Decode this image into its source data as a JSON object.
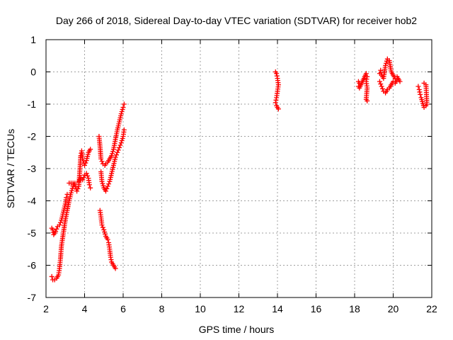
{
  "chart_data": {
    "type": "scatter",
    "title": "Day 266 of 2018, Sidereal Day-to-day VTEC variation (SDTVAR) for receiver hob2",
    "xlabel": "GPS time / hours",
    "ylabel": "SDTVAR / TECUs",
    "xlim": [
      2,
      22
    ],
    "ylim": [
      -7,
      1
    ],
    "xticks": [
      "2",
      "4",
      "6",
      "8",
      "10",
      "12",
      "14",
      "16",
      "18",
      "20",
      "22"
    ],
    "yticks": [
      "1",
      "0",
      "-1",
      "-2",
      "-3",
      "-4",
      "-5",
      "-6",
      "-7"
    ],
    "grid": true,
    "marker": "+",
    "color": "#ff0000",
    "series": [
      {
        "name": "hob2",
        "segments": [
          {
            "x": [
              2.3,
              2.35,
              2.4,
              2.5,
              2.6,
              2.7,
              2.8,
              2.9,
              3.0,
              3.05,
              3.1
            ],
            "y": [
              -4.85,
              -4.9,
              -5.05,
              -4.95,
              -4.8,
              -4.75,
              -4.6,
              -4.35,
              -4.1,
              -3.9,
              -3.8
            ]
          },
          {
            "x": [
              2.3,
              2.35,
              2.45,
              2.55,
              2.65,
              2.7,
              2.75,
              2.8,
              2.9,
              3.0,
              3.1,
              3.2,
              3.3,
              3.4,
              3.5
            ],
            "y": [
              -6.35,
              -6.45,
              -6.45,
              -6.4,
              -6.3,
              -6.1,
              -5.8,
              -5.4,
              -5.0,
              -4.6,
              -4.3,
              -4.0,
              -3.75,
              -3.55,
              -3.45
            ]
          },
          {
            "x": [
              3.2,
              3.3,
              3.4,
              3.5,
              3.6,
              3.7,
              3.75,
              3.8,
              3.85,
              3.9,
              4.0,
              4.1,
              4.2,
              4.3
            ],
            "y": [
              -3.45,
              -3.45,
              -3.45,
              -3.5,
              -3.7,
              -3.55,
              -3.1,
              -2.6,
              -2.45,
              -2.7,
              -2.9,
              -2.75,
              -2.5,
              -2.4
            ]
          },
          {
            "x": [
              3.7,
              3.8,
              3.9,
              4.0,
              4.1,
              4.2,
              4.25,
              4.3
            ],
            "y": [
              -3.4,
              -3.3,
              -3.35,
              -3.2,
              -3.15,
              -3.3,
              -3.5,
              -3.6
            ]
          },
          {
            "x": [
              4.75,
              4.8,
              4.85,
              4.95,
              5.05,
              5.1,
              5.2,
              5.3,
              5.4,
              5.5,
              5.6,
              5.7,
              5.8,
              5.9,
              6.0,
              6.05
            ],
            "y": [
              -2.0,
              -2.3,
              -2.7,
              -2.85,
              -2.9,
              -2.85,
              -2.8,
              -2.7,
              -2.6,
              -2.4,
              -2.1,
              -1.8,
              -1.55,
              -1.3,
              -1.1,
              -1.0
            ]
          },
          {
            "x": [
              4.85,
              4.9,
              5.0,
              5.1,
              5.2,
              5.3,
              5.4,
              5.5,
              5.6,
              5.7,
              5.8,
              5.9,
              6.0,
              6.05
            ],
            "y": [
              -3.1,
              -3.4,
              -3.6,
              -3.7,
              -3.55,
              -3.4,
              -3.15,
              -2.9,
              -2.65,
              -2.5,
              -2.35,
              -2.2,
              -2.0,
              -1.8
            ]
          },
          {
            "x": [
              4.8,
              4.85,
              4.9,
              5.0,
              5.1,
              5.2,
              5.25,
              5.3,
              5.35,
              5.4,
              5.5,
              5.6
            ],
            "y": [
              -4.3,
              -4.5,
              -4.75,
              -4.9,
              -5.1,
              -5.2,
              -5.3,
              -5.5,
              -5.75,
              -5.9,
              -6.0,
              -6.1
            ]
          },
          {
            "x": [
              13.9,
              13.95,
              14.0,
              14.05,
              14.0,
              13.95,
              13.9,
              13.95,
              14.0,
              14.05
            ],
            "y": [
              0.0,
              -0.05,
              -0.2,
              -0.4,
              -0.6,
              -0.8,
              -0.95,
              -1.05,
              -1.1,
              -1.15
            ]
          },
          {
            "x": [
              18.2,
              18.25,
              18.2,
              18.25,
              18.6,
              18.65,
              18.6,
              18.65,
              18.6,
              18.65
            ],
            "y": [
              -0.3,
              -0.35,
              -0.45,
              -0.5,
              -0.05,
              -0.15,
              -0.3,
              -0.5,
              -0.85,
              -0.9
            ]
          },
          {
            "x": [
              19.3,
              19.35,
              19.4,
              19.5,
              19.6,
              19.7,
              19.8,
              19.9,
              20.0,
              20.1,
              20.2,
              20.3,
              20.35
            ],
            "y": [
              -0.05,
              0.05,
              -0.1,
              -0.2,
              0.2,
              0.4,
              0.35,
              0.0,
              -0.1,
              -0.2,
              -0.15,
              -0.25,
              -0.3
            ]
          },
          {
            "x": [
              19.3,
              19.4,
              19.5,
              19.6,
              19.7,
              19.8,
              19.9,
              20.0,
              20.1,
              20.2
            ],
            "y": [
              -0.3,
              -0.45,
              -0.6,
              -0.65,
              -0.55,
              -0.5,
              -0.4,
              -0.3,
              -0.35,
              -0.25
            ]
          },
          {
            "x": [
              21.3,
              21.35,
              21.4,
              21.45,
              21.6,
              21.7,
              21.75,
              21.7,
              21.6
            ],
            "y": [
              -0.45,
              -0.55,
              -0.7,
              -0.8,
              -1.1,
              -1.05,
              -1.0,
              -0.4,
              -0.35
            ]
          }
        ]
      }
    ]
  }
}
